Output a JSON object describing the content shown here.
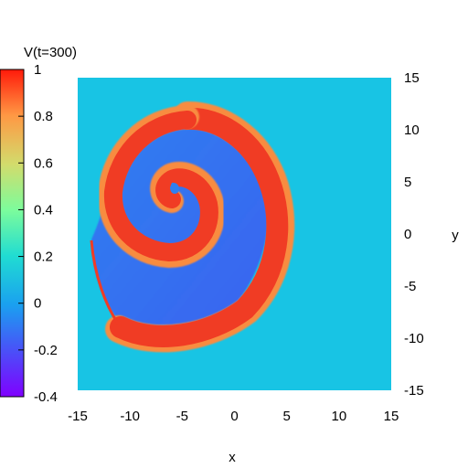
{
  "chart_data": {
    "type": "heatmap",
    "title": "",
    "colorbar_label": "V(t=300)",
    "xlabel": "x",
    "ylabel": "y",
    "xlim": [
      -15,
      15
    ],
    "ylim": [
      -15,
      15
    ],
    "x_ticks": [
      "-15",
      "-10",
      "-5",
      "0",
      "5",
      "10",
      "15"
    ],
    "y_ticks": [
      "15",
      "10",
      "5",
      "0",
      "-5",
      "-10",
      "-15"
    ],
    "colorbar_range": [
      -0.4,
      1
    ],
    "colorbar_ticks": [
      "1",
      "0.8",
      "0.6",
      "0.4",
      "0.2",
      "0",
      "-0.2",
      "-0.4"
    ],
    "background_value": 0,
    "pattern": "spiral wave",
    "spiral_center": [
      -6.5,
      3.5
    ],
    "colors": {
      "resting": "#18c4e4",
      "wavefront": "#f03c24",
      "wave_edge": "#f88c40",
      "recovery": "#2a8cf0",
      "refractory": "#3c6ef2"
    }
  }
}
